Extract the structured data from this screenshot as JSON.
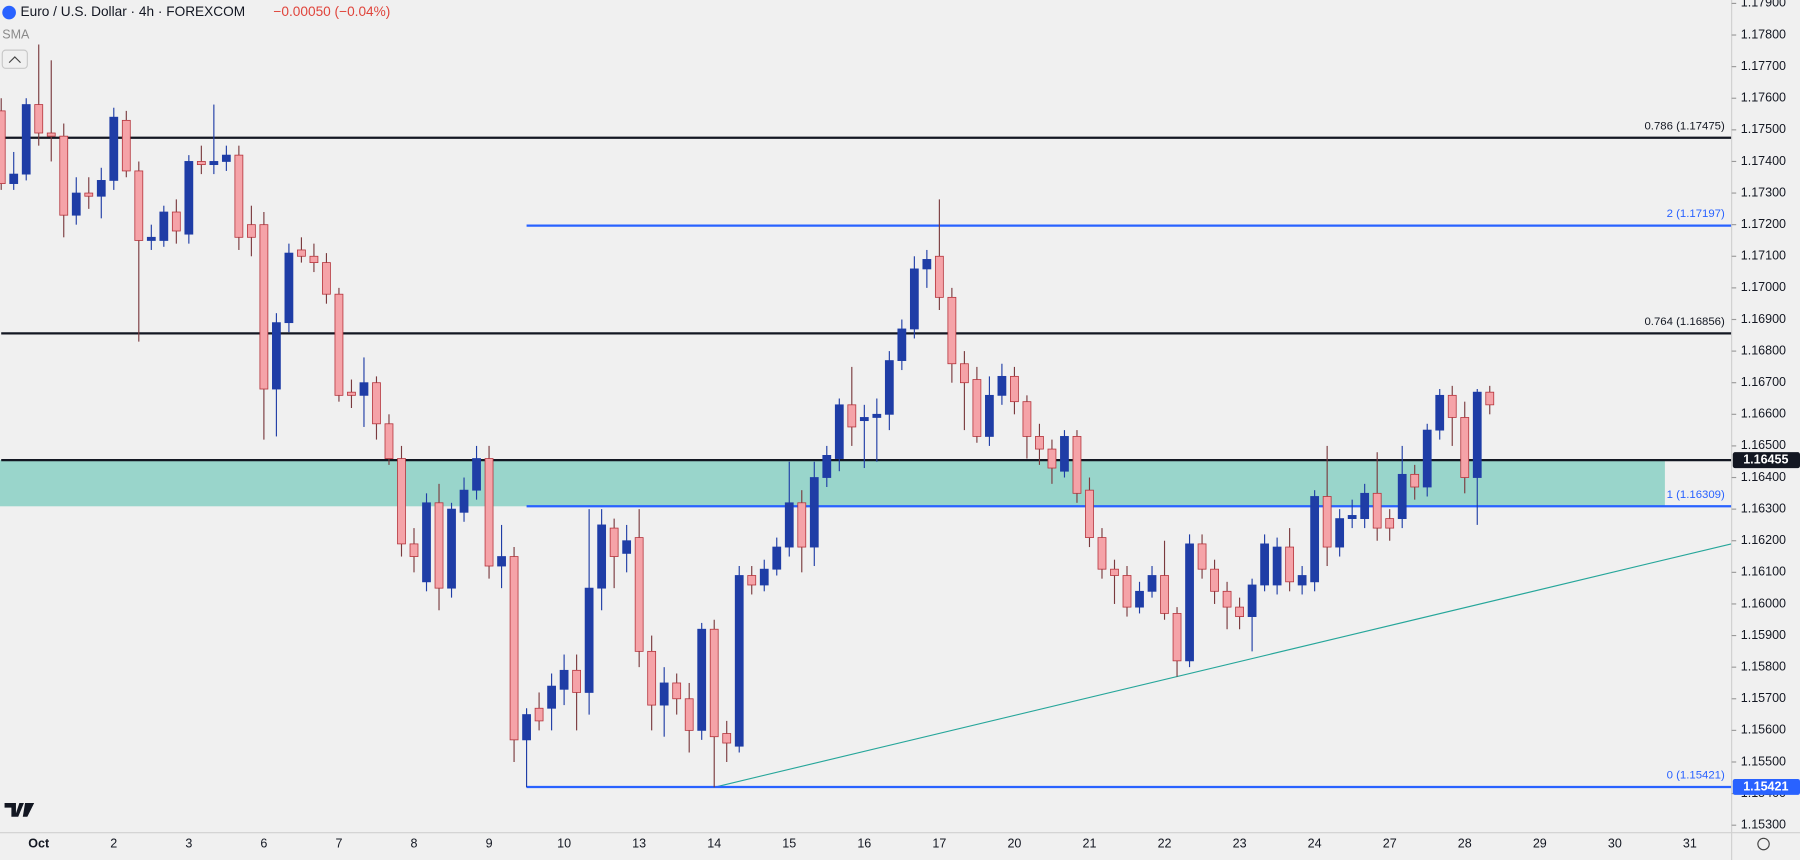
{
  "header": {
    "title": "Euro / U.S. Dollar · 4h · FOREXCOM",
    "change": "−0.00050 (−0.04%)",
    "indicator": "SMA"
  },
  "chart_data": {
    "type": "candlestick",
    "categories": [
      null,
      null,
      null,
      "Oct",
      null,
      null,
      null,
      null,
      null,
      "2",
      null,
      null,
      null,
      null,
      null,
      "3",
      null,
      null,
      null,
      null,
      null,
      "6",
      null,
      null,
      null,
      null,
      null,
      "7",
      null,
      null,
      null,
      null,
      null,
      "8",
      null,
      null,
      null,
      null,
      null,
      "9",
      null,
      null,
      null,
      null,
      null,
      "10",
      null,
      null,
      null,
      null,
      null,
      "13",
      null,
      null,
      null,
      null,
      null,
      "14",
      null,
      null,
      null,
      null,
      null,
      "15",
      null,
      null,
      null,
      null,
      null,
      "16",
      null,
      null,
      null,
      null,
      null,
      "17",
      null,
      null,
      null,
      null,
      null,
      "20",
      null,
      null,
      null,
      null,
      null,
      "21",
      null,
      null,
      null,
      null,
      null,
      "22",
      null,
      null,
      null,
      null,
      null,
      "23",
      null,
      null,
      null,
      null,
      null,
      "24",
      null,
      null,
      null,
      null,
      null,
      "27",
      null,
      null,
      null,
      null,
      null,
      "28",
      null,
      null,
      null,
      null,
      null,
      "29",
      null,
      null,
      null,
      null,
      null,
      "30",
      null,
      null,
      null,
      null,
      null,
      "31"
    ],
    "open": [
      1.1756,
      1.1733,
      1.1736,
      1.1758,
      1.1749,
      1.1748,
      1.1723,
      1.173,
      1.1729,
      1.1734,
      1.1753,
      1.1737,
      1.1715,
      1.1715,
      1.1724,
      1.1717,
      1.174,
      1.1739,
      1.174,
      1.1742,
      1.172,
      1.172,
      1.1668,
      1.1689,
      1.1712,
      1.171,
      1.1708,
      1.1698,
      1.1667,
      1.1666,
      1.167,
      1.1657,
      1.1646,
      1.1619,
      1.1607,
      1.1632,
      1.1605,
      1.1629,
      1.1636,
      1.1646,
      1.1612,
      1.1615,
      1.1557,
      1.1567,
      1.1567,
      1.1573,
      1.1579,
      1.1572,
      1.1605,
      1.1624,
      1.1616,
      1.1621,
      1.1585,
      1.1568,
      1.1575,
      1.157,
      1.156,
      1.1592,
      1.1559,
      1.1555,
      1.1609,
      1.1606,
      1.1611,
      1.1618,
      1.1632,
      1.1618,
      1.164,
      1.1646,
      1.1663,
      1.1658,
      1.1659,
      1.166,
      1.1677,
      1.1687,
      1.1706,
      1.171,
      1.1697,
      1.1676,
      1.1671,
      1.1653,
      1.1666,
      1.1672,
      1.1664,
      1.1653,
      1.1649,
      1.1642,
      1.1653,
      1.1636,
      1.1621,
      1.1611,
      1.1609,
      1.1599,
      1.1604,
      1.1609,
      1.1597,
      1.1582,
      1.1619,
      1.1611,
      1.1604,
      1.1599,
      1.1596,
      1.1606,
      1.1606,
      1.1618,
      1.1606,
      1.1607,
      1.1634,
      1.1618,
      1.1627,
      1.1627,
      1.1635,
      1.1627,
      1.1627,
      1.1641,
      1.1637,
      1.1655,
      1.1666,
      1.1659,
      1.164,
      1.1667,
      null,
      null,
      null,
      null,
      null,
      null,
      null,
      null,
      null,
      null,
      null,
      null,
      null,
      null,
      null,
      null
    ],
    "high": [
      1.176,
      1.1743,
      1.176,
      1.1777,
      1.1772,
      1.1752,
      1.1735,
      1.1735,
      1.1738,
      1.1757,
      1.1756,
      1.174,
      1.172,
      1.1726,
      1.1728,
      1.1742,
      1.1745,
      1.1758,
      1.1745,
      1.1745,
      1.1726,
      1.1724,
      1.1692,
      1.1714,
      1.1716,
      1.1714,
      1.1711,
      1.17,
      1.1671,
      1.1678,
      1.1672,
      1.166,
      1.165,
      1.1624,
      1.1635,
      1.1638,
      1.1632,
      1.164,
      1.165,
      1.165,
      1.1625,
      1.1618,
      1.1567,
      1.1572,
      1.1578,
      1.1584,
      1.1584,
      1.163,
      1.163,
      1.1627,
      1.1625,
      1.163,
      1.159,
      1.158,
      1.1578,
      1.1575,
      1.1594,
      1.1595,
      1.1563,
      1.1612,
      1.1612,
      1.1614,
      1.1621,
      1.1645,
      1.1636,
      1.1645,
      1.165,
      1.1665,
      1.1675,
      1.1663,
      1.1665,
      1.168,
      1.169,
      1.171,
      1.1712,
      1.1728,
      1.17,
      1.168,
      1.1675,
      1.1672,
      1.1676,
      1.1675,
      1.1666,
      1.1657,
      1.1652,
      1.1655,
      1.1655,
      1.164,
      1.1624,
      1.1614,
      1.1612,
      1.1607,
      1.1612,
      1.162,
      1.1599,
      1.1622,
      1.1622,
      1.1614,
      1.1607,
      1.1602,
      1.1608,
      1.1622,
      1.1621,
      1.1624,
      1.1612,
      1.1636,
      1.165,
      1.163,
      1.1633,
      1.1638,
      1.1648,
      1.163,
      1.165,
      1.1644,
      1.1657,
      1.1668,
      1.1669,
      1.1664,
      1.1668,
      1.1669,
      null,
      null,
      null,
      null,
      null,
      null,
      null,
      null,
      null,
      null,
      null,
      null,
      null,
      null,
      null,
      null
    ],
    "low": [
      1.1731,
      1.1731,
      1.1734,
      1.1745,
      1.174,
      1.1716,
      1.172,
      1.1725,
      1.1722,
      1.1731,
      1.1735,
      1.1683,
      1.1712,
      1.1713,
      1.1714,
      1.1714,
      1.1736,
      1.1736,
      1.1737,
      1.1712,
      1.171,
      1.1652,
      1.1653,
      1.1686,
      1.1708,
      1.1705,
      1.1695,
      1.1664,
      1.1662,
      1.1656,
      1.1652,
      1.1644,
      1.1615,
      1.161,
      1.1604,
      1.1598,
      1.1602,
      1.1626,
      1.1633,
      1.1608,
      1.1605,
      1.155,
      1.1542,
      1.156,
      1.156,
      1.1568,
      1.156,
      1.1565,
      1.1598,
      1.1605,
      1.161,
      1.158,
      1.156,
      1.1558,
      1.1565,
      1.1553,
      1.1557,
      1.1542,
      1.155,
      1.1553,
      1.1603,
      1.1604,
      1.1609,
      1.1615,
      1.161,
      1.1612,
      1.1637,
      1.1642,
      1.165,
      1.1643,
      1.1645,
      1.1655,
      1.1674,
      1.1684,
      1.17,
      1.1693,
      1.167,
      1.1655,
      1.1651,
      1.165,
      1.1663,
      1.166,
      1.1646,
      1.1644,
      1.1638,
      1.164,
      1.1632,
      1.1618,
      1.1608,
      1.16,
      1.1596,
      1.1597,
      1.1602,
      1.1595,
      1.1577,
      1.158,
      1.1608,
      1.16,
      1.1592,
      1.1592,
      1.1585,
      1.1604,
      1.1603,
      1.1604,
      1.1603,
      1.1604,
      1.1612,
      1.1615,
      1.1624,
      1.1624,
      1.162,
      1.162,
      1.1624,
      1.1633,
      1.1634,
      1.1652,
      1.165,
      1.1635,
      1.1625,
      1.166,
      null,
      null,
      null,
      null,
      null,
      null,
      null,
      null,
      null,
      null,
      null,
      null,
      null,
      null,
      null,
      null
    ],
    "close": [
      1.1733,
      1.1736,
      1.1758,
      1.1749,
      1.1748,
      1.1723,
      1.173,
      1.1729,
      1.1734,
      1.1754,
      1.1737,
      1.1715,
      1.1716,
      1.1724,
      1.1718,
      1.174,
      1.1739,
      1.174,
      1.1742,
      1.1716,
      1.1716,
      1.1668,
      1.1689,
      1.1711,
      1.171,
      1.1708,
      1.1698,
      1.1666,
      1.1666,
      1.167,
      1.1657,
      1.1646,
      1.1619,
      1.1615,
      1.1632,
      1.1605,
      1.163,
      1.1636,
      1.1646,
      1.1612,
      1.1615,
      1.1557,
      1.1565,
      1.1563,
      1.1574,
      1.1579,
      1.1572,
      1.1605,
      1.1625,
      1.1615,
      1.162,
      1.1585,
      1.1568,
      1.1575,
      1.157,
      1.156,
      1.1592,
      1.1558,
      1.1556,
      1.1609,
      1.1606,
      1.1611,
      1.1618,
      1.1632,
      1.1618,
      1.164,
      1.1647,
      1.1663,
      1.1656,
      1.1659,
      1.166,
      1.1677,
      1.1687,
      1.1706,
      1.1709,
      1.1697,
      1.1676,
      1.167,
      1.1653,
      1.1666,
      1.1672,
      1.1664,
      1.1653,
      1.1649,
      1.1643,
      1.1653,
      1.1635,
      1.1621,
      1.1611,
      1.1609,
      1.1599,
      1.1604,
      1.1609,
      1.1597,
      1.1582,
      1.1619,
      1.1611,
      1.1604,
      1.1599,
      1.1596,
      1.1606,
      1.1619,
      1.1618,
      1.1607,
      1.1609,
      1.1634,
      1.1618,
      1.1627,
      1.1628,
      1.1635,
      1.1624,
      1.1624,
      1.1641,
      1.1637,
      1.1655,
      1.1666,
      1.1659,
      1.164,
      1.1667,
      1.1663,
      null,
      null,
      null,
      null,
      null,
      null,
      null,
      null,
      null,
      null,
      null,
      null,
      null,
      null,
      null,
      null
    ],
    "up_color": "#1f3da6",
    "down_color": "#f5a3a8",
    "ylim": [
      1.1528,
      1.179
    ],
    "yticks": [
      {
        "value": 1.153,
        "label": "1.15300"
      },
      {
        "value": 1.154,
        "label": "1.15400"
      },
      {
        "value": 1.155,
        "label": "1.15500"
      },
      {
        "value": 1.156,
        "label": "1.15600"
      },
      {
        "value": 1.157,
        "label": "1.15700"
      },
      {
        "value": 1.158,
        "label": "1.15800"
      },
      {
        "value": 1.159,
        "label": "1.15900"
      },
      {
        "value": 1.16,
        "label": "1.16000"
      },
      {
        "value": 1.161,
        "label": "1.16100"
      },
      {
        "value": 1.162,
        "label": "1.16200"
      },
      {
        "value": 1.163,
        "label": "1.16300"
      },
      {
        "value": 1.164,
        "label": "1.16400"
      },
      {
        "value": 1.165,
        "label": "1.16500"
      },
      {
        "value": 1.166,
        "label": "1.16600"
      },
      {
        "value": 1.167,
        "label": "1.16700"
      },
      {
        "value": 1.168,
        "label": "1.16800"
      },
      {
        "value": 1.169,
        "label": "1.16900"
      },
      {
        "value": 1.17,
        "label": "1.17000"
      },
      {
        "value": 1.171,
        "label": "1.17100"
      },
      {
        "value": 1.172,
        "label": "1.17200"
      },
      {
        "value": 1.173,
        "label": "1.17300"
      },
      {
        "value": 1.174,
        "label": "1.17400"
      },
      {
        "value": 1.175,
        "label": "1.17500"
      },
      {
        "value": 1.176,
        "label": "1.17600"
      },
      {
        "value": 1.177,
        "label": "1.17700"
      },
      {
        "value": 1.178,
        "label": "1.17800"
      },
      {
        "value": 1.179,
        "label": "1.17900"
      }
    ],
    "grid": false,
    "zone": {
      "from": 1.16309,
      "to": 1.16455,
      "end_index": 133,
      "color": "#93d3c8"
    },
    "levels": [
      {
        "label": "0.786 (1.17475)",
        "value": 1.17475,
        "color": "#131722",
        "from_index": 0
      },
      {
        "label": "2 (1.17197)",
        "value": 1.17197,
        "color": "#2962ff",
        "from_index": 42
      },
      {
        "label": "0.764 (1.16856)",
        "value": 1.16856,
        "color": "#131722",
        "from_index": 0
      },
      {
        "value": 1.16455,
        "tag": "1.16455",
        "color": "#131722",
        "from_index": 0
      },
      {
        "label": "1 (1.16309)",
        "value": 1.16309,
        "color": "#2962ff",
        "from_index": 42
      },
      {
        "label": "0 (1.15421)",
        "tag": "1.15421",
        "value": 1.15421,
        "color": "#2962ff",
        "from_index": 42
      }
    ],
    "trendline": {
      "x": [
        57,
        138.3
      ],
      "y": [
        1.1542,
        1.1619
      ],
      "color": "#26a69a"
    }
  }
}
